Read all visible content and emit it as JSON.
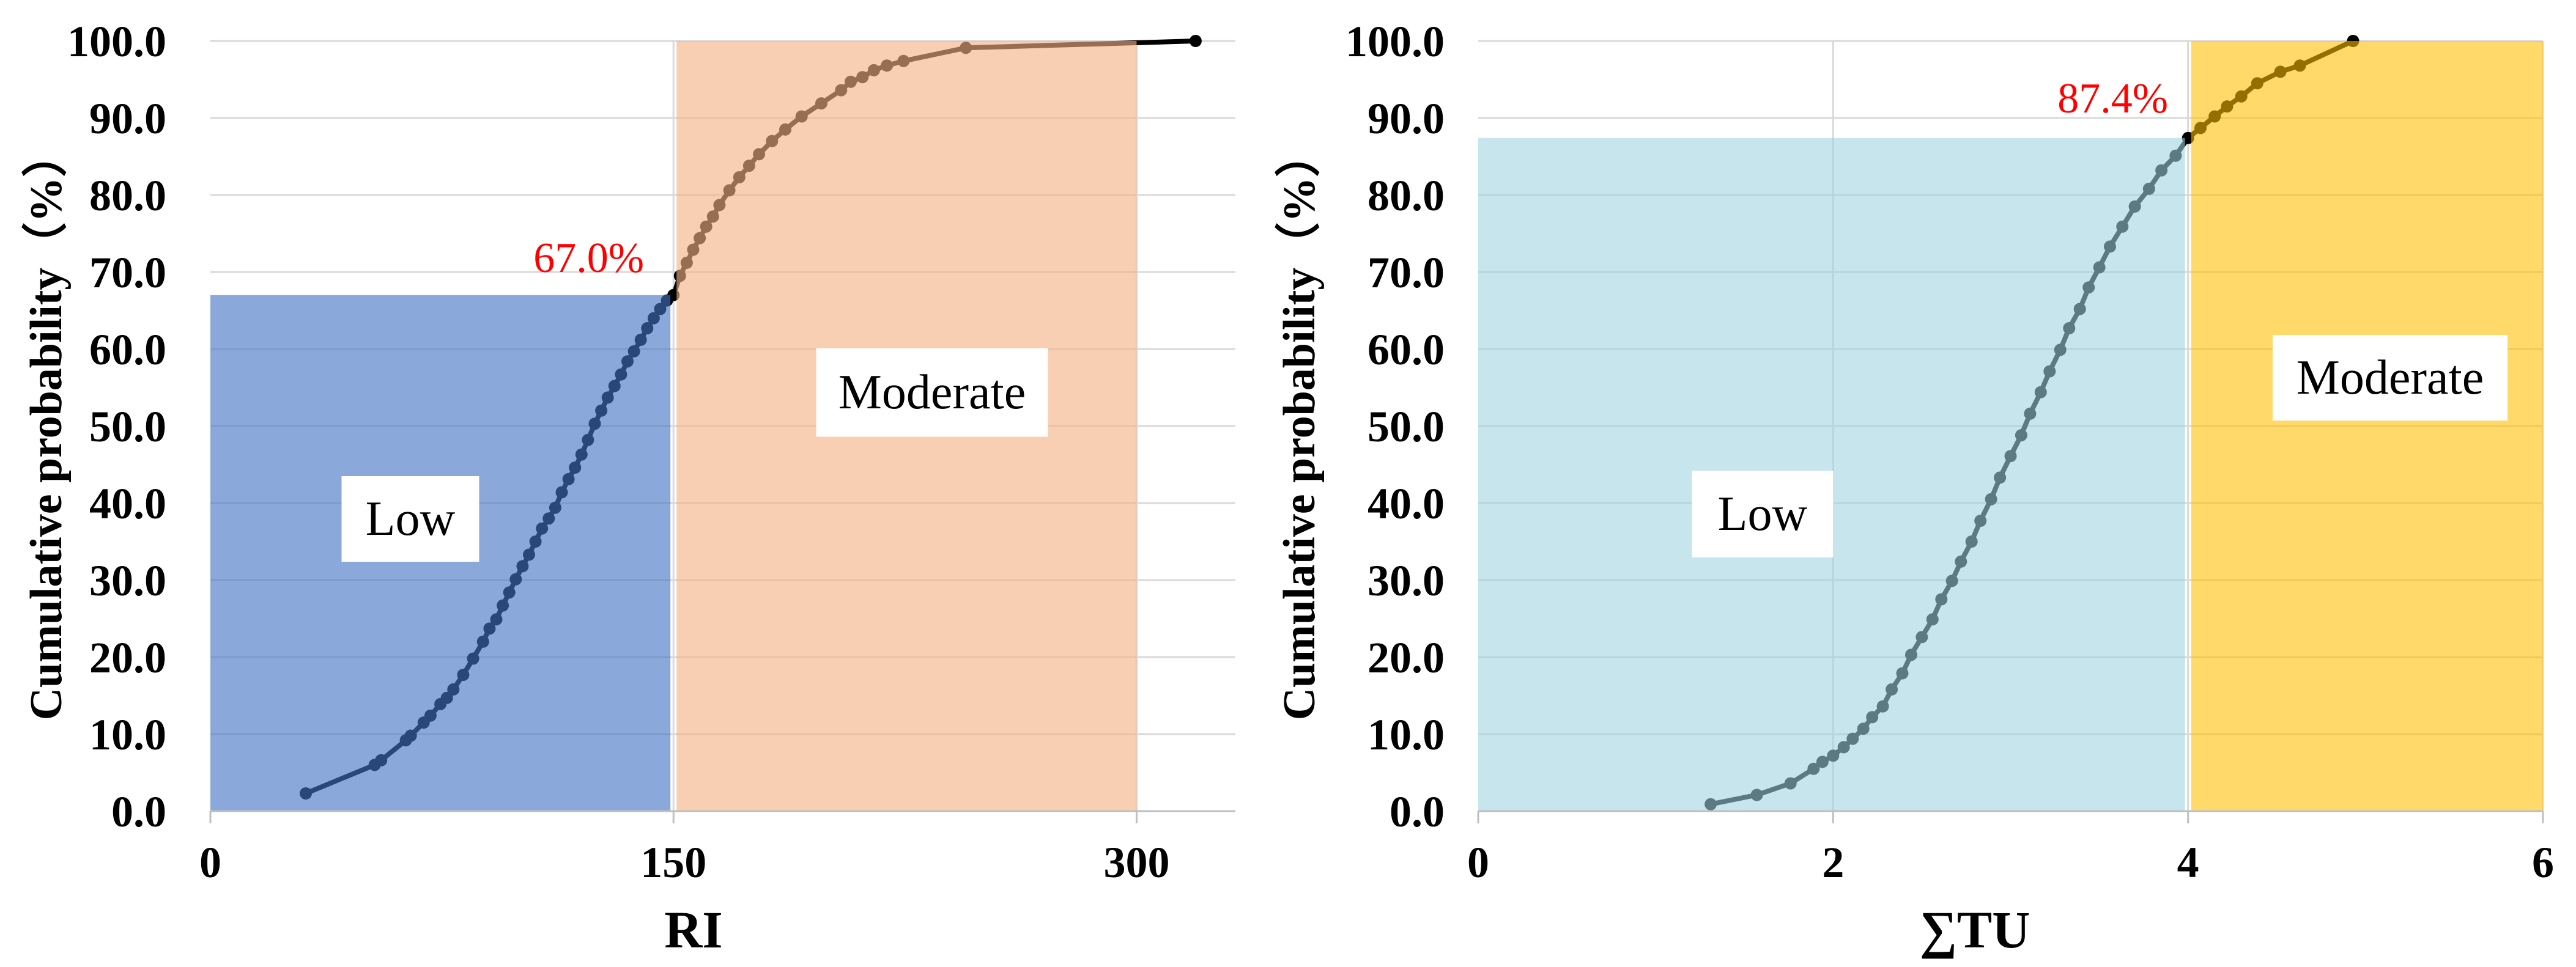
{
  "chart_data": [
    {
      "type": "line",
      "title": "",
      "xlabel": "RI",
      "ylabel": "Cumulative probability（%）",
      "xlim": [
        0,
        332
      ],
      "ylim": [
        0,
        100
      ],
      "grid": true,
      "xticks": {
        "values": [
          0,
          150,
          300
        ],
        "labels": [
          "0",
          "150",
          "300"
        ]
      },
      "yticks": {
        "values": [
          0,
          10,
          20,
          30,
          40,
          50,
          60,
          70,
          80,
          90,
          100
        ],
        "labels": [
          "0.0",
          "10.0",
          "20.0",
          "30.0",
          "40.0",
          "50.0",
          "60.0",
          "70.0",
          "80.0",
          "90.0",
          "100.0"
        ]
      },
      "line_color": "#000000",
      "series": [
        {
          "x": [
            30.9,
            53.2,
            55.3,
            63.3,
            64.9,
            69.1,
            71.3,
            74.5,
            76.6,
            78.7,
            81.9,
            85.1,
            88.3,
            90.4,
            92.6,
            94.7,
            96.8,
            98.9,
            101.1,
            103.2,
            105.3,
            107.4,
            109.6,
            111.7,
            113.8,
            116.0,
            118.1,
            120.2,
            122.3,
            124.5,
            126.6,
            128.7,
            130.9,
            133.0,
            135.1,
            137.2,
            139.4,
            141.5,
            143.6,
            145.7,
            147.9,
            150.0,
            152.1,
            154.3,
            156.4,
            158.5,
            160.6,
            162.8,
            164.9,
            168.1,
            171.3,
            174.5,
            177.7,
            181.9,
            186.2,
            191.5,
            197.9,
            204.3,
            207.4,
            211.2,
            214.9,
            219.1,
            224.5,
            244.7,
            319.1
          ],
          "y": [
            2.3,
            6.0,
            6.6,
            9.2,
            9.8,
            11.5,
            12.4,
            13.9,
            14.7,
            15.8,
            17.7,
            19.8,
            22.0,
            23.7,
            24.9,
            26.7,
            28.4,
            30.1,
            31.8,
            33.3,
            35.0,
            36.7,
            38.0,
            39.4,
            41.4,
            43.1,
            44.6,
            46.3,
            48.2,
            50.3,
            52.0,
            53.7,
            55.2,
            56.7,
            58.4,
            59.7,
            61.2,
            62.7,
            64.0,
            65.2,
            66.3,
            67.0,
            69.5,
            71.2,
            72.9,
            74.4,
            75.9,
            77.2,
            78.7,
            80.6,
            82.3,
            83.8,
            85.3,
            87.0,
            88.5,
            90.2,
            91.9,
            93.6,
            94.7,
            95.3,
            96.2,
            96.8,
            97.4,
            99.1,
            100.0
          ]
        }
      ],
      "regions": [
        {
          "label": "Low",
          "x": [
            0,
            150
          ],
          "y": [
            0,
            67.0
          ],
          "color": "#4472C4"
        },
        {
          "label": "Moderate",
          "x": [
            150,
            300
          ],
          "y": [
            0,
            100
          ],
          "color": "#F4B183"
        }
      ],
      "annotations": [
        {
          "text": "67.0%",
          "x": 150,
          "y": 67.0,
          "color": "#FF0000"
        }
      ]
    },
    {
      "type": "line",
      "title": "",
      "xlabel": "∑TU",
      "ylabel": "Cumulative probability（%）",
      "xlim": [
        0,
        6
      ],
      "ylim": [
        0,
        100
      ],
      "grid": true,
      "xticks": {
        "values": [
          0,
          2,
          4,
          6
        ],
        "labels": [
          "0",
          "2",
          "4",
          "6"
        ]
      },
      "yticks": {
        "values": [
          0,
          10,
          20,
          30,
          40,
          50,
          60,
          70,
          80,
          90,
          100
        ],
        "labels": [
          "0.0",
          "10.0",
          "20.0",
          "30.0",
          "40.0",
          "50.0",
          "60.0",
          "70.0",
          "80.0",
          "90.0",
          "100.0"
        ]
      },
      "line_color": "#000000",
      "series": [
        {
          "x": [
            1.31,
            1.57,
            1.76,
            1.89,
            1.94,
            2.0,
            2.06,
            2.11,
            2.17,
            2.22,
            2.28,
            2.33,
            2.39,
            2.44,
            2.5,
            2.56,
            2.61,
            2.67,
            2.72,
            2.78,
            2.83,
            2.89,
            2.94,
            3.0,
            3.06,
            3.11,
            3.17,
            3.22,
            3.28,
            3.33,
            3.39,
            3.44,
            3.5,
            3.56,
            3.63,
            3.7,
            3.78,
            3.85,
            3.93,
            4.0,
            4.07,
            4.15,
            4.22,
            4.3,
            4.39,
            4.52,
            4.63,
            4.93
          ],
          "y": [
            0.9,
            2.1,
            3.6,
            5.5,
            6.4,
            7.2,
            8.3,
            9.4,
            10.7,
            12.2,
            13.6,
            15.8,
            17.9,
            20.3,
            22.6,
            24.9,
            27.5,
            29.9,
            32.4,
            35.0,
            37.7,
            40.5,
            43.3,
            46.1,
            48.8,
            51.6,
            54.4,
            57.1,
            59.9,
            62.7,
            65.2,
            68.0,
            70.6,
            73.3,
            75.9,
            78.5,
            80.8,
            83.2,
            85.1,
            87.4,
            88.7,
            90.2,
            91.5,
            92.8,
            94.5,
            96.0,
            96.8,
            100.0
          ]
        }
      ],
      "regions": [
        {
          "label": "Low",
          "x": [
            0,
            4
          ],
          "y": [
            0,
            87.4
          ],
          "color": "#9DD3E0"
        },
        {
          "label": "Moderate",
          "x": [
            4,
            6
          ],
          "y": [
            0,
            100
          ],
          "color": "#FFC000"
        }
      ],
      "annotations": [
        {
          "text": "87.4%",
          "x": 4,
          "y": 87.4,
          "color": "#FF0000"
        }
      ]
    }
  ]
}
